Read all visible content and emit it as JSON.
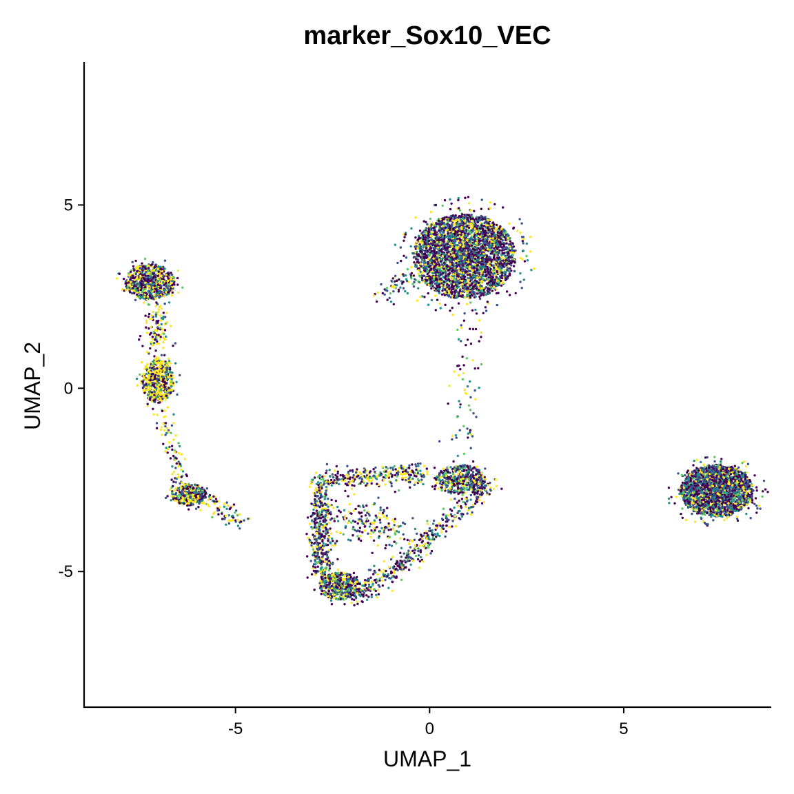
{
  "chart_data": {
    "type": "scatter",
    "title": "marker_Sox10_VEC",
    "xlabel": "UMAP_1",
    "ylabel": "UMAP_2",
    "xlim": [
      -8.9,
      8.8
    ],
    "ylim": [
      -8.7,
      8.9
    ],
    "x_ticks": [
      {
        "value": -5,
        "label": "-5"
      },
      {
        "value": 0,
        "label": "0"
      },
      {
        "value": 5,
        "label": "5"
      }
    ],
    "y_ticks": [
      {
        "value": -5,
        "label": "-5"
      },
      {
        "value": 0,
        "label": "0"
      },
      {
        "value": 5,
        "label": "5"
      }
    ],
    "grid": false,
    "legend": "none",
    "color_scale": "viridis",
    "palette": [
      "#440154",
      "#3b528b",
      "#21908c",
      "#5dc863",
      "#fde725"
    ],
    "clusters": [
      {
        "center": [
          0.9,
          3.6
        ],
        "spread": [
          1.75,
          1.55
        ],
        "points": 3200,
        "expression_mean": 0.3
      },
      {
        "center": [
          7.4,
          -2.8
        ],
        "spread": [
          1.25,
          0.95
        ],
        "points": 2200,
        "expression_mean": 0.25
      },
      {
        "center": [
          -7.2,
          2.9
        ],
        "spread": [
          0.85,
          0.65
        ],
        "points": 750,
        "expression_mean": 0.5
      },
      {
        "center": [
          -7.0,
          0.2
        ],
        "spread": [
          0.55,
          0.8
        ],
        "points": 600,
        "expression_mean": 0.85
      },
      {
        "center": [
          -6.2,
          -2.9
        ],
        "spread": [
          0.6,
          0.4
        ],
        "points": 320,
        "expression_mean": 0.7
      },
      {
        "center": [
          0.8,
          -2.5
        ],
        "spread": [
          0.85,
          0.55
        ],
        "points": 480,
        "expression_mean": 0.35
      },
      {
        "center": [
          -2.3,
          -5.4
        ],
        "spread": [
          0.7,
          0.5
        ],
        "points": 430,
        "expression_mean": 0.45
      }
    ],
    "paths": [
      {
        "from": [
          -2.8,
          -2.6
        ],
        "to": [
          -2.8,
          -5.2
        ],
        "width": 0.3,
        "points": 420,
        "expression_mean": 0.45
      },
      {
        "from": [
          -2.8,
          -2.5
        ],
        "to": [
          -0.2,
          -2.3
        ],
        "width": 0.28,
        "points": 300,
        "expression_mean": 0.45
      },
      {
        "from": [
          -1.9,
          -5.7
        ],
        "to": [
          -0.2,
          -4.4
        ],
        "width": 0.28,
        "points": 220,
        "expression_mean": 0.45
      },
      {
        "from": [
          -0.3,
          -4.3
        ],
        "to": [
          1.6,
          -2.6
        ],
        "width": 0.25,
        "points": 200,
        "expression_mean": 0.4
      },
      {
        "from": [
          0.8,
          -1.9
        ],
        "to": [
          1.1,
          2.2
        ],
        "width": 0.35,
        "points": 70,
        "expression_mean": 0.4
      },
      {
        "from": [
          -7.0,
          1.1
        ],
        "to": [
          -7.0,
          2.3
        ],
        "width": 0.35,
        "points": 110,
        "expression_mean": 0.8
      },
      {
        "from": [
          -6.9,
          -0.6
        ],
        "to": [
          -6.4,
          -2.5
        ],
        "width": 0.25,
        "points": 80,
        "expression_mean": 0.8
      },
      {
        "from": [
          -6.0,
          -2.9
        ],
        "to": [
          -4.8,
          -3.7
        ],
        "width": 0.25,
        "points": 90,
        "expression_mean": 0.45
      },
      {
        "from": [
          -2.2,
          -3.4
        ],
        "to": [
          -0.8,
          -4.0
        ],
        "width": 0.6,
        "points": 180,
        "expression_mean": 0.45
      },
      {
        "from": [
          -0.3,
          3.0
        ],
        "to": [
          -1.3,
          2.6
        ],
        "width": 0.35,
        "points": 60,
        "expression_mean": 0.4
      }
    ]
  }
}
